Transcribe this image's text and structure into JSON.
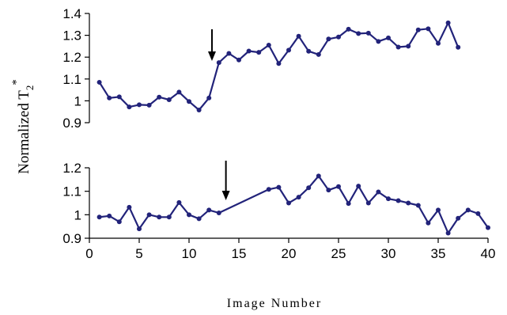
{
  "chart_data": [
    {
      "type": "line",
      "panel": "top",
      "ylim": [
        0.9,
        1.4
      ],
      "yticks": [
        "1.4",
        "1.3",
        "1.2",
        "1.1",
        "1",
        "0.9"
      ],
      "line_color": "#22237a",
      "arrow_at_x": 12.3,
      "x": [
        1,
        2,
        3,
        4,
        5,
        6,
        7,
        8,
        9,
        10,
        11,
        12,
        13,
        14,
        15,
        16,
        17,
        18,
        19,
        20,
        21,
        22,
        23,
        24,
        25,
        26,
        27,
        28,
        29,
        30,
        31,
        32,
        33,
        34,
        35,
        36,
        37
      ],
      "values": [
        1.085,
        1.013,
        1.018,
        0.972,
        0.982,
        0.98,
        1.017,
        1.005,
        1.04,
        0.997,
        0.958,
        1.013,
        1.175,
        1.217,
        1.187,
        1.228,
        1.222,
        1.255,
        1.171,
        1.232,
        1.296,
        1.227,
        1.212,
        1.283,
        1.292,
        1.328,
        1.308,
        1.31,
        1.272,
        1.288,
        1.246,
        1.25,
        1.325,
        1.33,
        1.263,
        1.357,
        1.245
      ]
    },
    {
      "type": "line",
      "panel": "bottom",
      "ylim": [
        0.9,
        1.2
      ],
      "yticks": [
        "1.2",
        "1.1",
        "1",
        "0.9"
      ],
      "line_color": "#22237a",
      "arrow_at_x": 13.7,
      "x": [
        1,
        2,
        3,
        4,
        5,
        6,
        7,
        8,
        9,
        10,
        11,
        12,
        13,
        18,
        19,
        20,
        21,
        22,
        23,
        24,
        25,
        26,
        27,
        28,
        29,
        30,
        31,
        32,
        33,
        34,
        35,
        36,
        37,
        38,
        39,
        40
      ],
      "values": [
        0.99,
        0.995,
        0.97,
        1.032,
        0.94,
        1.0,
        0.99,
        0.99,
        1.052,
        1.0,
        0.983,
        1.02,
        1.008,
        1.108,
        1.117,
        1.05,
        1.075,
        1.115,
        1.165,
        1.105,
        1.12,
        1.048,
        1.122,
        1.05,
        1.097,
        1.068,
        1.06,
        1.05,
        1.04,
        0.965,
        1.02,
        0.922,
        0.985,
        1.02,
        1.005,
        0.945
      ]
    }
  ],
  "xaxis": {
    "xlim": [
      0,
      40
    ],
    "ticks": [
      "0",
      "5",
      "10",
      "15",
      "20",
      "25",
      "30",
      "35",
      "40"
    ],
    "label": "Image Number"
  },
  "ylabel": {
    "main": "Normalized T",
    "sub": "2",
    "sup": "*"
  }
}
